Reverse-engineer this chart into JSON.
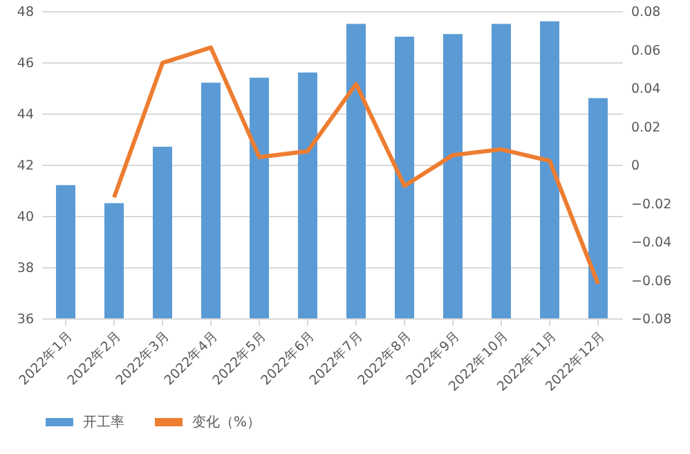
{
  "chart_data": {
    "type": "bar",
    "categories": [
      "2022年1月",
      "2022年2月",
      "2022年3月",
      "2022年4月",
      "2022年5月",
      "2022年6月",
      "2022年7月",
      "2022年8月",
      "2022年9月",
      "2022年10月",
      "2022年11月",
      "2022年12月"
    ],
    "series": [
      {
        "name": "开工率",
        "color": "#5b9bd5",
        "values": [
          41.2,
          40.5,
          42.7,
          45.2,
          45.4,
          45.6,
          47.5,
          47.0,
          47.1,
          47.5,
          47.6,
          44.6
        ]
      },
      {
        "name": "变化（%）",
        "type": "line",
        "axis": "y2",
        "color": "#ed7d31",
        "values": [
          null,
          -0.017,
          0.053,
          0.061,
          0.004,
          0.007,
          0.042,
          -0.011,
          0.005,
          0.008,
          0.002,
          -0.062
        ]
      }
    ],
    "ylim": [
      36,
      48
    ],
    "yticks": [
      36,
      38,
      40,
      42,
      44,
      46,
      48
    ],
    "y2lim": [
      -0.08,
      0.08
    ],
    "y2ticks": [
      -0.08,
      -0.06,
      -0.04,
      -0.02,
      0,
      0.02,
      0.04,
      0.06,
      0.08
    ],
    "grid": "y",
    "legend": "bottom",
    "marker": "none",
    "line_style": "solid"
  }
}
